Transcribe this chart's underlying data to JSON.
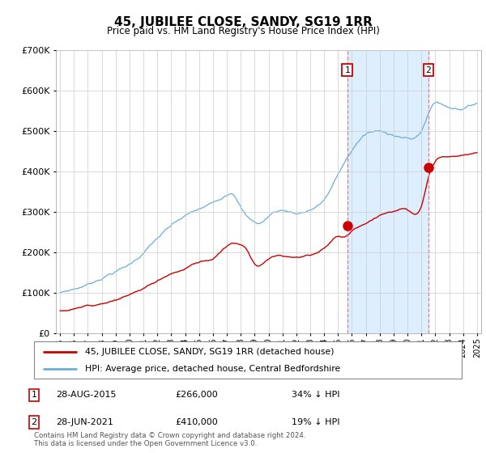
{
  "title": "45, JUBILEE CLOSE, SANDY, SG19 1RR",
  "subtitle": "Price paid vs. HM Land Registry's House Price Index (HPI)",
  "legend_line1": "45, JUBILEE CLOSE, SANDY, SG19 1RR (detached house)",
  "legend_line2": "HPI: Average price, detached house, Central Bedfordshire",
  "footnote": "Contains HM Land Registry data © Crown copyright and database right 2024.\nThis data is licensed under the Open Government Licence v3.0.",
  "transaction1_label": "1",
  "transaction1_date": "28-AUG-2015",
  "transaction1_price": "£266,000",
  "transaction1_note": "34% ↓ HPI",
  "transaction2_label": "2",
  "transaction2_date": "28-JUN-2021",
  "transaction2_price": "£410,000",
  "transaction2_note": "19% ↓ HPI",
  "transaction1_year": 2015.66,
  "transaction2_year": 2021.5,
  "transaction1_price_val": 266000,
  "transaction2_price_val": 410000,
  "hpi_color": "#6baed6",
  "price_color": "#cc0000",
  "vline_color": "#e08080",
  "shade_color": "#ddeeff",
  "marker_color": "#cc0000",
  "ylim": [
    0,
    700000
  ],
  "yticks": [
    0,
    100000,
    200000,
    300000,
    400000,
    500000,
    600000,
    700000
  ],
  "background_color": "#ffffff",
  "grid_color": "#cccccc",
  "xlim_left": 1994.7,
  "xlim_right": 2025.3
}
